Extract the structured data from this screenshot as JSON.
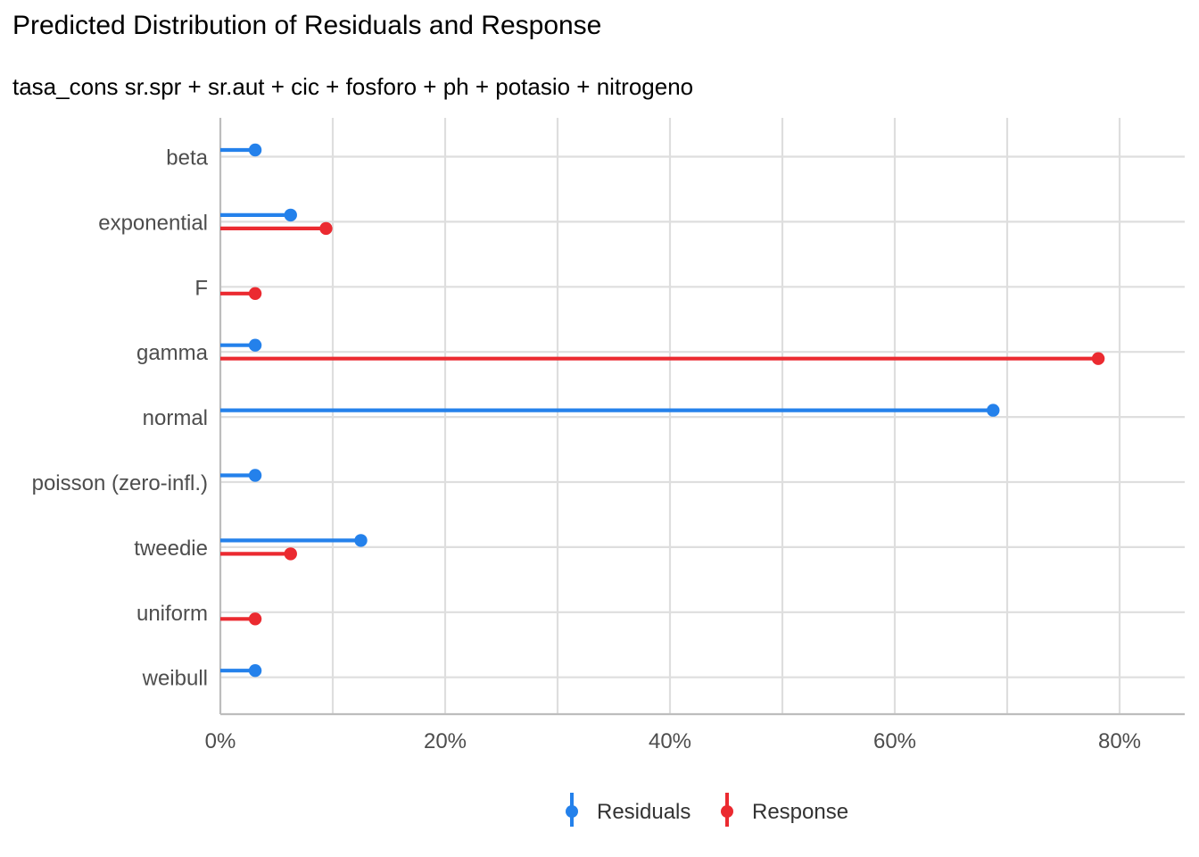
{
  "chart_data": {
    "type": "lollipop",
    "title": "Predicted Distribution of Residuals and Response",
    "subtitle": "tasa_cons sr.spr + sr.aut + cic + fosforo + ph + potasio + nitrogeno",
    "xlabel": "",
    "ylabel": "",
    "x_unit": "percent",
    "xlim": [
      0,
      86
    ],
    "x_ticks": [
      0,
      20,
      40,
      60,
      80
    ],
    "x_tick_labels": [
      "0%",
      "20%",
      "40%",
      "60%",
      "80%"
    ],
    "grid": true,
    "legend_position": "bottom",
    "categories": [
      "beta",
      "exponential",
      "F",
      "gamma",
      "normal",
      "poisson (zero-infl.)",
      "tweedie",
      "uniform",
      "weibull"
    ],
    "series": [
      {
        "name": "Residuals",
        "color": "#2481EB",
        "values": [
          3.1,
          6.25,
          null,
          3.1,
          68.75,
          3.1,
          12.5,
          null,
          3.1
        ]
      },
      {
        "name": "Response",
        "color": "#EB2A30",
        "values": [
          null,
          9.4,
          null,
          78.1,
          null,
          null,
          6.25,
          3.1,
          null
        ]
      }
    ],
    "response_extra": {
      "F": 3.1
    }
  }
}
